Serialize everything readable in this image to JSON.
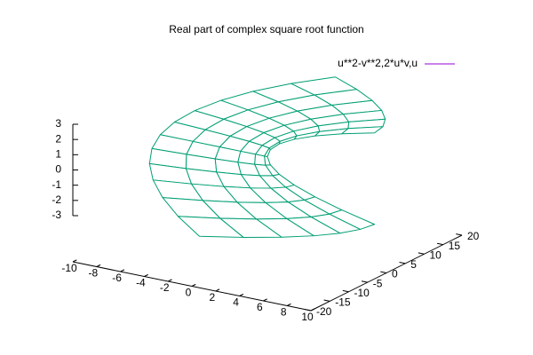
{
  "chart_data": {
    "type": "surface",
    "title": "Real part of complex square root function",
    "series": [
      {
        "name": "u**2-v**2,2*u*v,u",
        "color": "#9400d3",
        "back_color": "#009e73",
        "x": [
          [
            9,
            8.75,
            8,
            6.75,
            5,
            2.75,
            0
          ],
          [
            6.25,
            6,
            5.25,
            4,
            2.25,
            0,
            -2.75
          ],
          [
            4,
            3.75,
            3,
            1.75,
            0,
            -2.25,
            -5
          ],
          [
            2.25,
            2,
            1.25,
            0,
            -1.75,
            -4,
            -6.75
          ],
          [
            1,
            0.75,
            0,
            -1.25,
            -3,
            -5.25,
            -8
          ],
          [
            0.25,
            0,
            -0.75,
            -2,
            -3.75,
            -6,
            -8.75
          ],
          [
            0,
            -0.25,
            -1,
            -2.25,
            -4,
            -6.25,
            -9
          ],
          [
            0.25,
            0,
            -0.75,
            -2,
            -3.75,
            -6,
            -8.75
          ],
          [
            1,
            0.75,
            0,
            -1.25,
            -3,
            -5.25,
            -8
          ],
          [
            2.25,
            2,
            1.25,
            0,
            -1.75,
            -4,
            -6.75
          ],
          [
            4,
            3.75,
            3,
            1.75,
            0,
            -2.25,
            -5
          ],
          [
            6.25,
            6,
            5.25,
            4,
            2.25,
            0,
            -2.75
          ],
          [
            9,
            8.75,
            8,
            6.75,
            5,
            2.75,
            0
          ]
        ],
        "y": [
          [
            0,
            -3,
            -6,
            -9,
            -12,
            -15,
            -18
          ],
          [
            0,
            -2.5,
            -5,
            -7.5,
            -10,
            -12.5,
            -15
          ],
          [
            0,
            -2,
            -4,
            -6,
            -8,
            -10,
            -12
          ],
          [
            0,
            -1.5,
            -3,
            -4.5,
            -6,
            -7.5,
            -9
          ],
          [
            0,
            -1,
            -2,
            -3,
            -4,
            -5,
            -6
          ],
          [
            0,
            -0.5,
            -1,
            -1.5,
            -2,
            -2.5,
            -3
          ],
          [
            0,
            0,
            0,
            0,
            0,
            0,
            0
          ],
          [
            0,
            0.5,
            1,
            1.5,
            2,
            2.5,
            3
          ],
          [
            0,
            1,
            2,
            3,
            4,
            5,
            6
          ],
          [
            0,
            1.5,
            3,
            4.5,
            6,
            7.5,
            9
          ],
          [
            0,
            2,
            4,
            6,
            8,
            10,
            12
          ],
          [
            0,
            2.5,
            5,
            7.5,
            10,
            12.5,
            15
          ],
          [
            0,
            3,
            6,
            9,
            12,
            15,
            18
          ]
        ],
        "z": [
          [
            -3,
            -3,
            -3,
            -3,
            -3,
            -3,
            -3
          ],
          [
            -2.5,
            -2.5,
            -2.5,
            -2.5,
            -2.5,
            -2.5,
            -2.5
          ],
          [
            -2,
            -2,
            -2,
            -2,
            -2,
            -2,
            -2
          ],
          [
            -1.5,
            -1.5,
            -1.5,
            -1.5,
            -1.5,
            -1.5,
            -1.5
          ],
          [
            -1,
            -1,
            -1,
            -1,
            -1,
            -1,
            -1
          ],
          [
            -0.5,
            -0.5,
            -0.5,
            -0.5,
            -0.5,
            -0.5,
            -0.5
          ],
          [
            0,
            0,
            0,
            0,
            0,
            0,
            0
          ],
          [
            0.5,
            0.5,
            0.5,
            0.5,
            0.5,
            0.5,
            0.5
          ],
          [
            1,
            1,
            1,
            1,
            1,
            1,
            1
          ],
          [
            1.5,
            1.5,
            1.5,
            1.5,
            1.5,
            1.5,
            1.5
          ],
          [
            2,
            2,
            2,
            2,
            2,
            2,
            2
          ],
          [
            2.5,
            2.5,
            2.5,
            2.5,
            2.5,
            2.5,
            2.5
          ],
          [
            3,
            3,
            3,
            3,
            3,
            3,
            3
          ]
        ]
      }
    ],
    "xlim": [
      -10,
      10
    ],
    "ylim": [
      -20,
      20
    ],
    "zlim": [
      -3,
      3
    ],
    "xticks": [
      -10,
      -8,
      -6,
      -4,
      -2,
      0,
      2,
      4,
      6,
      8,
      10
    ],
    "yticks": [
      -20,
      -15,
      -10,
      -5,
      0,
      5,
      10,
      15,
      20
    ],
    "zticks": [
      -3,
      -2,
      -1,
      0,
      1,
      2,
      3
    ]
  }
}
